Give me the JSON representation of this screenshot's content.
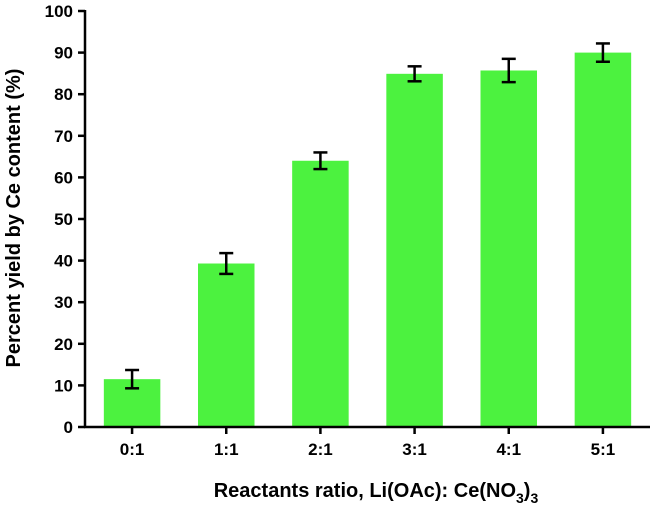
{
  "chart_data": {
    "type": "bar",
    "categories": [
      "0:1",
      "1:1",
      "2:1",
      "3:1",
      "4:1",
      "5:1"
    ],
    "series": [
      {
        "name": "Percent yield",
        "values": [
          11.5,
          39.3,
          64.0,
          84.9,
          85.7,
          90.0
        ],
        "error": [
          2.2,
          2.5,
          2.0,
          1.8,
          2.8,
          2.2
        ]
      }
    ],
    "ylim": [
      0,
      100
    ],
    "yticks": [
      0,
      10,
      20,
      30,
      40,
      50,
      60,
      70,
      80,
      90,
      100
    ],
    "ylabel": "Percent yield by Ce content (%)",
    "xlabel": {
      "prefix": "Reactants ratio, Li(OAc): Ce(NO",
      "sub1": "3",
      "close": ")",
      "sub2": "3"
    },
    "grid": false,
    "colors": {
      "bar": "#4cf23f",
      "axis": "#000000"
    }
  }
}
